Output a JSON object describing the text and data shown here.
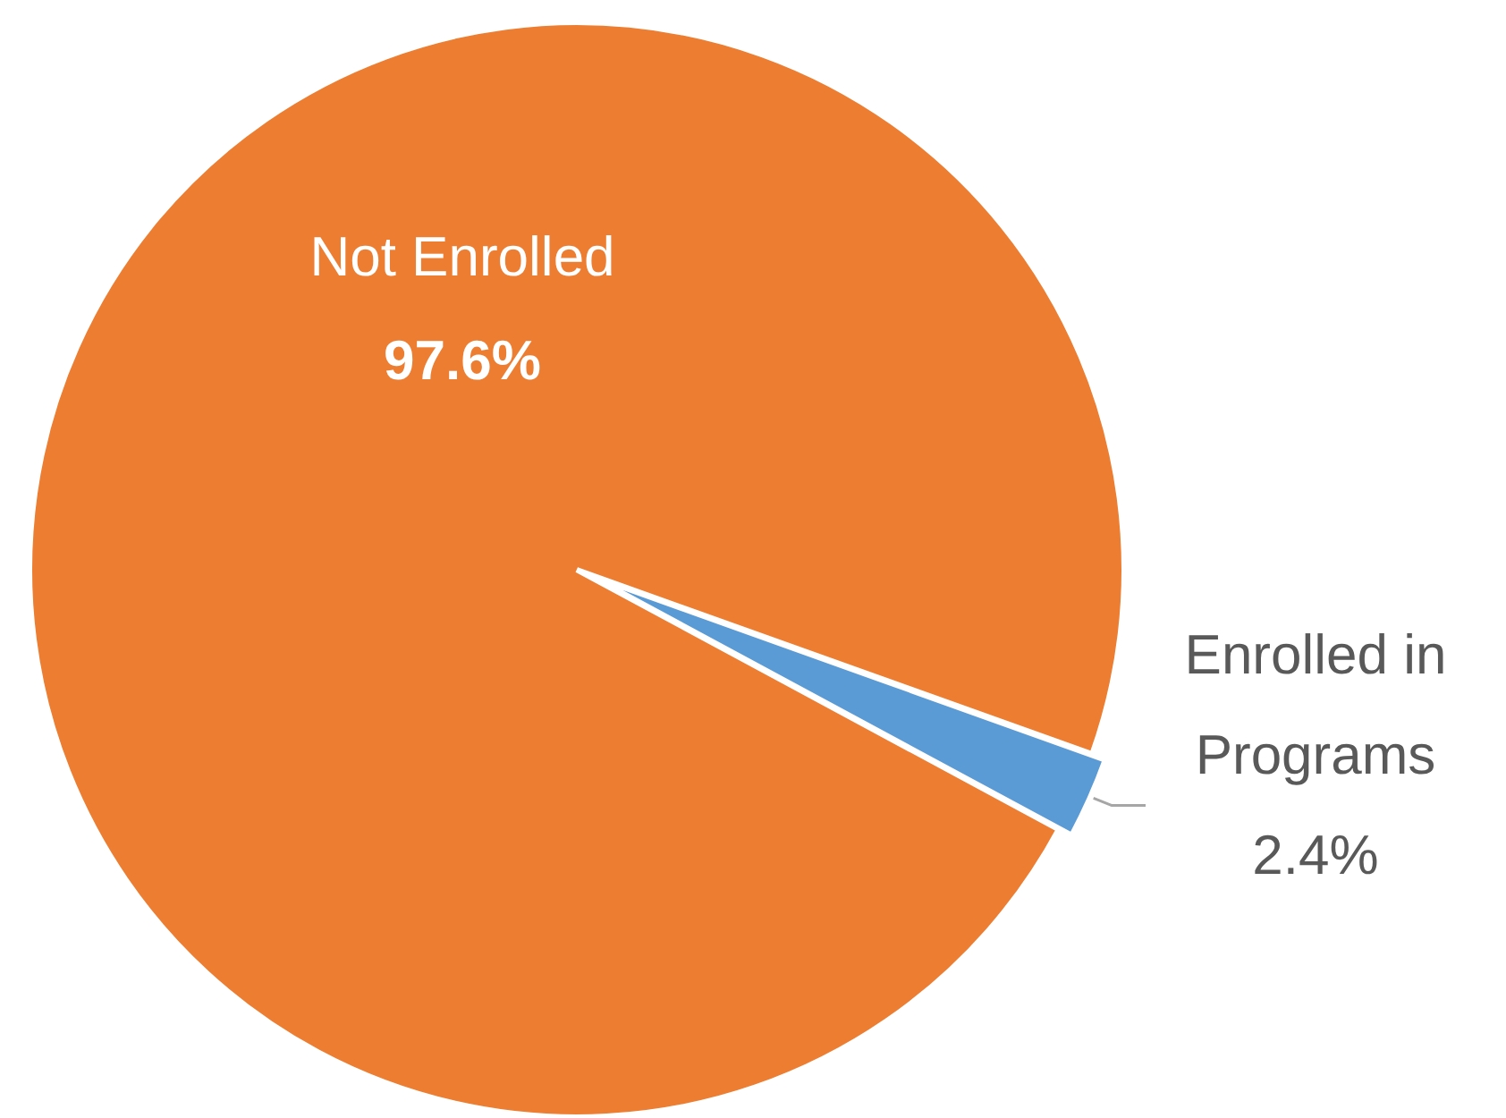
{
  "chart_data": {
    "type": "pie",
    "categories": [
      "Not Enrolled",
      "Enrolled in Programs"
    ],
    "values": [
      97.6,
      2.4
    ],
    "colors": [
      "#ed7d31",
      "#5b9bd5"
    ],
    "value_labels": [
      "97.6%",
      "2.4%"
    ]
  }
}
